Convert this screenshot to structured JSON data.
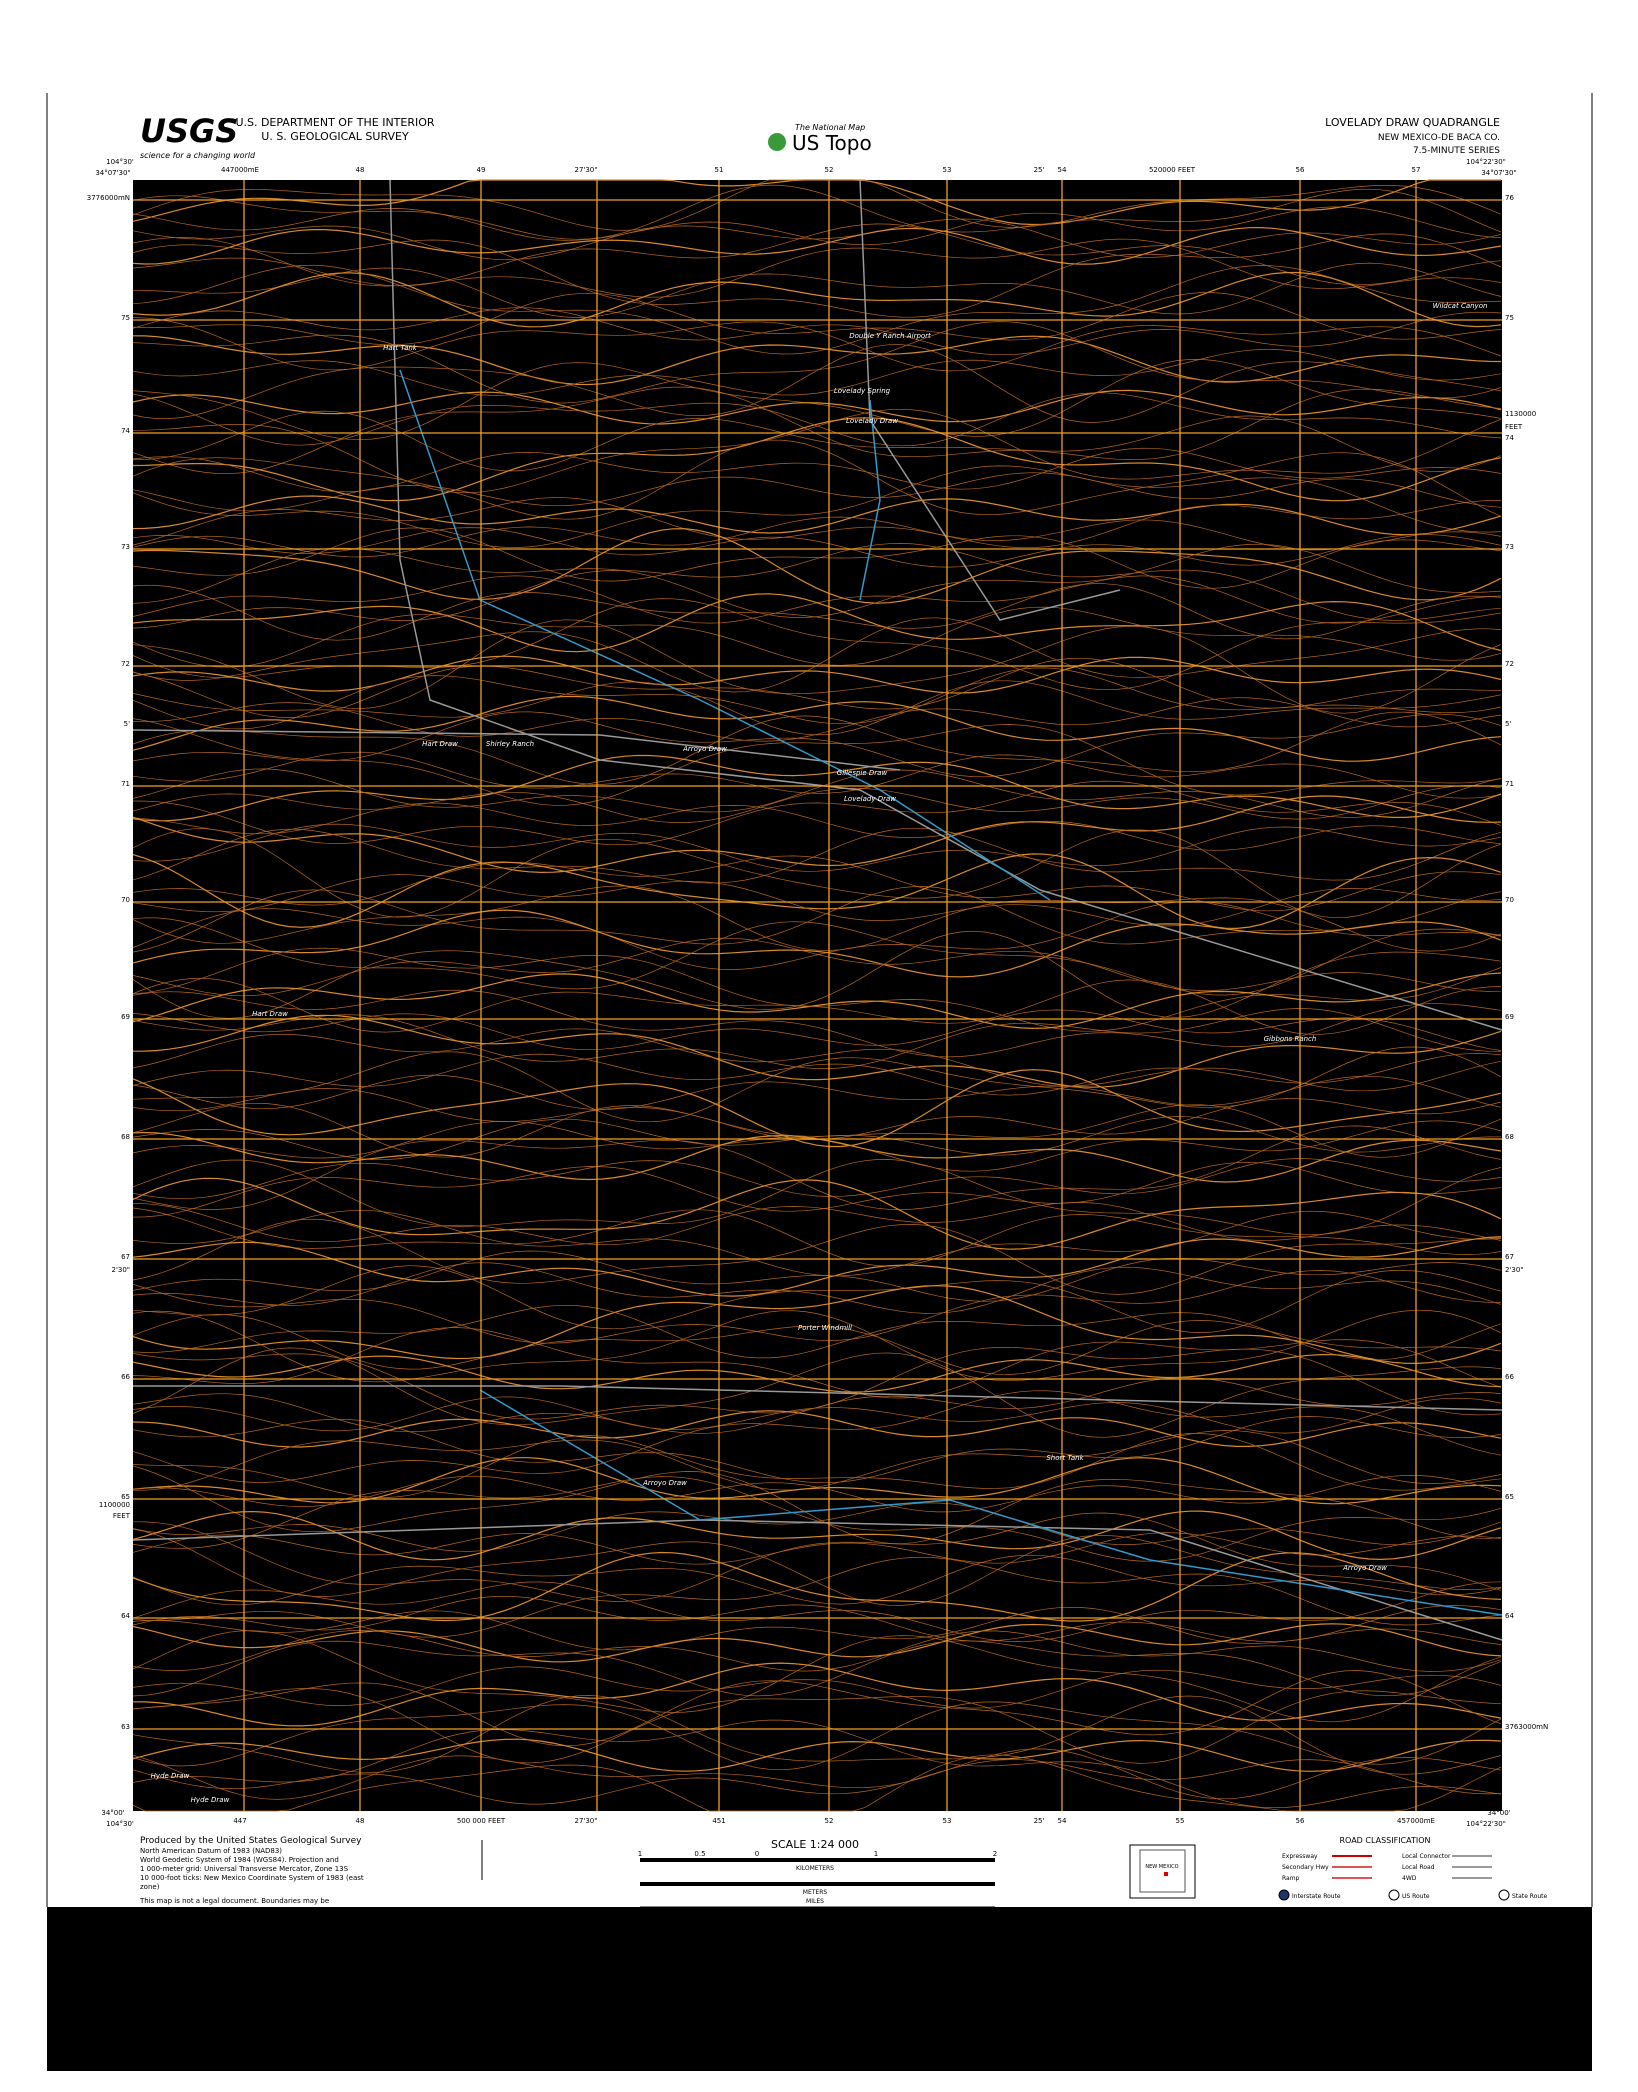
{
  "header": {
    "agency": [
      "U.S. DEPARTMENT OF THE INTERIOR",
      "U. S. GEOLOGICAL SURVEY"
    ],
    "usgs_logo": "USGS",
    "usgs_tagline": "science for a changing world",
    "national_map": "The National Map",
    "us_topo": "US Topo",
    "quad_title": "LOVELADY DRAW QUADRANGLE",
    "county": "NEW MEXICO-DE BACA CO.",
    "series": "7.5-MINUTE SERIES"
  },
  "grid": {
    "top": [
      "104°30'",
      "34°07'30\"",
      "447000mE",
      "48",
      "49",
      "27'30\"",
      "51",
      "52",
      "53",
      "25'",
      "54",
      "520000 FEET",
      "56",
      "57",
      "104°22'30\"",
      "34°07'30\""
    ],
    "left": [
      "3776000mN",
      "75",
      "74",
      "73",
      "72",
      "5'",
      "71",
      "70",
      "69",
      "68",
      "67",
      "2'30\"",
      "66",
      "65",
      "1100000",
      "FEET",
      "64",
      "63"
    ],
    "right": [
      "76",
      "75",
      "1130000",
      "FEET",
      "74",
      "73",
      "72",
      "5'",
      "71",
      "70",
      "69",
      "68",
      "67",
      "2'30\"",
      "66",
      "65",
      "64",
      "3763000mN"
    ],
    "bottom": [
      "34°00'",
      "104°30'",
      "447",
      "48",
      "500 000 FEET",
      "27'30\"",
      "451",
      "52",
      "53",
      "25'",
      "54",
      "55",
      "56",
      "457000mE",
      "34°00'",
      "104°22'30\""
    ]
  },
  "places": [
    "Double Y Ranch Airport",
    "Lovelady Spring",
    "Lovelady Draw",
    "Hart Tank",
    "Wildcat Canyon",
    "Arroyo Draw",
    "Gillespie Draw",
    "Lovelady Draw",
    "Hart Draw",
    "Shirley Ranch",
    "Hart Draw",
    "Porter Windmill",
    "Arroyo Draw",
    "Short Tank",
    "Arroyo Draw",
    "Gibbons Ranch",
    "Hyde Draw",
    "Hyde Draw"
  ],
  "footer": {
    "producer": [
      "Produced by the United States Geological Survey",
      "North American Datum of 1983 (NAD83)",
      "World Geodetic System of 1984 (WGS84). Projection and",
      "1 000-meter grid: Universal Transverse Mercator, Zone 13S",
      "10 000-foot ticks: New Mexico Coordinate System of 1983 (east",
      "zone)",
      "This map is not a legal document. Boundaries may be"
    ],
    "scale": "SCALE 1:24 000",
    "units": [
      "KILOMETERS",
      "METERS",
      "MILES"
    ],
    "scale_numbers": [
      "1",
      "0.5",
      "0",
      "1",
      "2"
    ],
    "road_title": "ROAD CLASSIFICATION",
    "roads": [
      "Expressway",
      "Secondary Hwy",
      "Ramp",
      "Local Connector",
      "Local Road",
      "4WD"
    ],
    "routes": [
      "Interstate Route",
      "US Route",
      "State Route"
    ],
    "inset": "NEW MEXICO"
  }
}
